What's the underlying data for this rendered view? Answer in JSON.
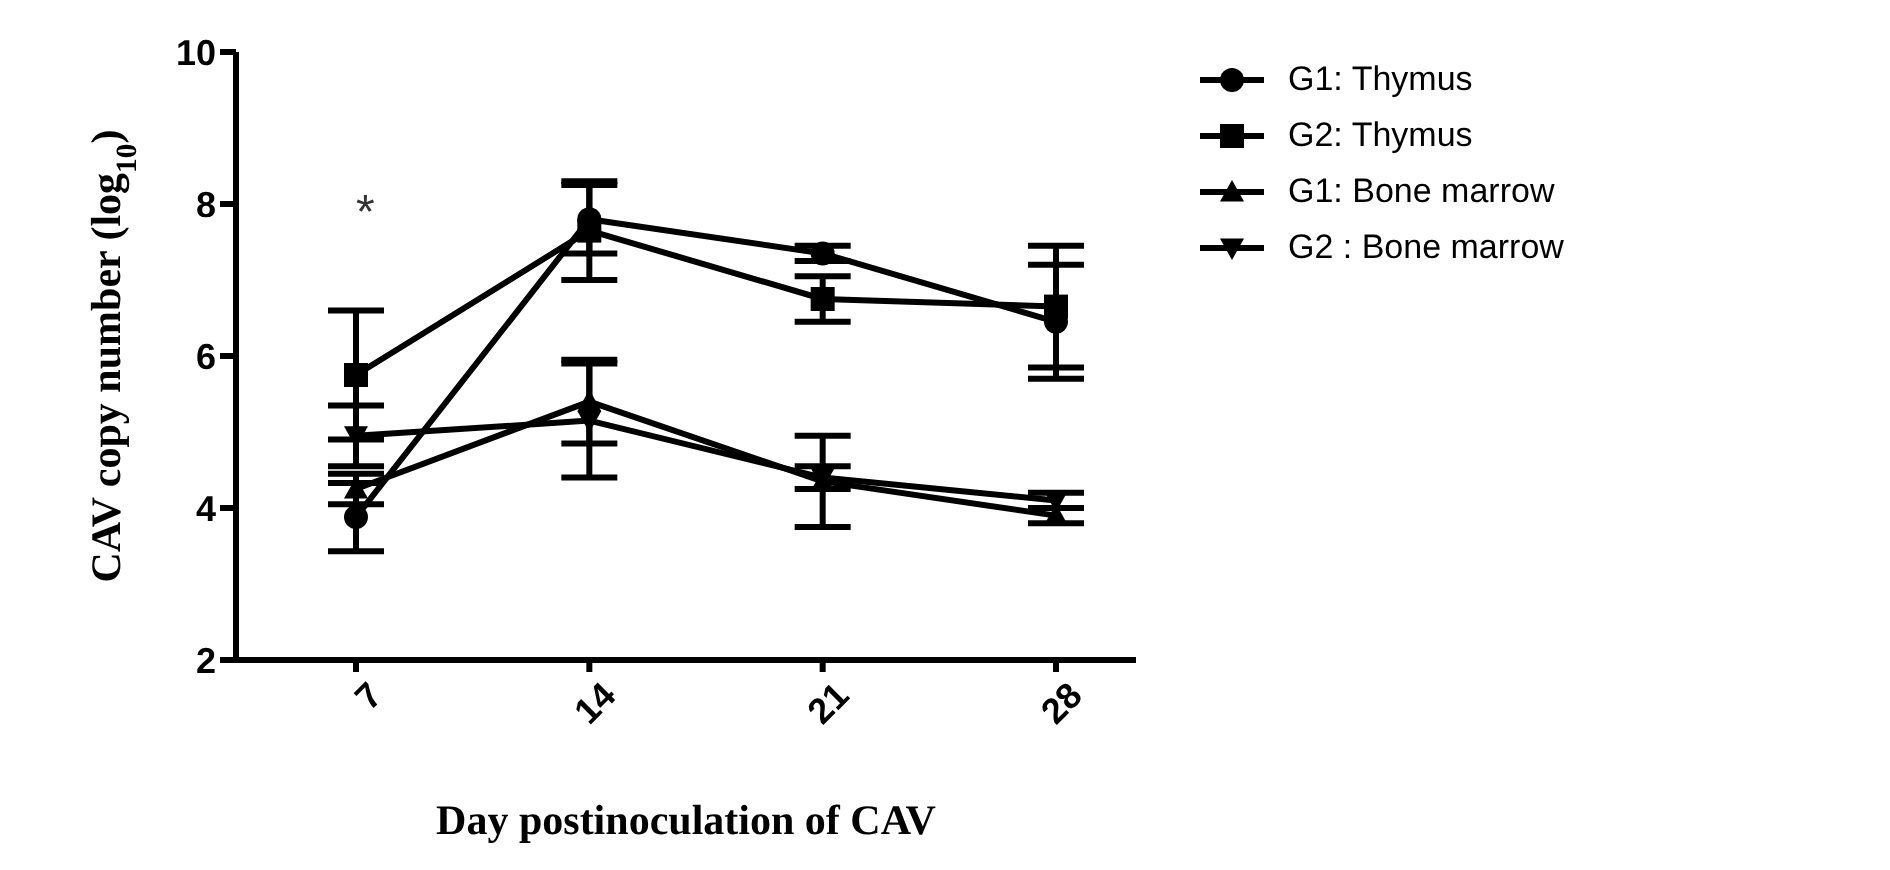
{
  "chart_data": {
    "type": "line",
    "xlabel": "Day postinoculation of CAV",
    "ylabel": "CAV copy number (log$_{10}$)",
    "categories": [
      "7",
      "14",
      "21",
      "28"
    ],
    "ylim": [
      2,
      10
    ],
    "yticks": [
      2,
      4,
      6,
      8,
      10
    ],
    "grid": false,
    "legend": "right",
    "line_style": "solid",
    "series": [
      {
        "name": "G1: Thymus",
        "color": "#000000",
        "marker": "circle",
        "values": [
          3.88,
          7.8,
          7.35,
          6.45
        ],
        "errors": [
          0.45,
          0.45,
          0.1,
          0.75
        ]
      },
      {
        "name": "G2: Thymus",
        "color": "#000000",
        "marker": "square",
        "values": [
          5.75,
          7.65,
          6.75,
          6.65
        ],
        "errors": [
          0.85,
          0.65,
          0.3,
          0.8
        ]
      },
      {
        "name": "G1: Bone marrow",
        "color": "#000000",
        "marker": "triangle",
        "values": [
          4.25,
          5.4,
          4.35,
          3.9
        ],
        "errors": [
          0.2,
          0.55,
          0.6,
          0.1
        ]
      },
      {
        "name": "G2 : Bone marrow",
        "color": "#000000",
        "marker": "triangle-down",
        "values": [
          4.95,
          5.15,
          4.4,
          4.1
        ],
        "errors": [
          0.4,
          0.75,
          0.15,
          0.1
        ]
      }
    ],
    "annotations": [
      "*"
    ]
  }
}
